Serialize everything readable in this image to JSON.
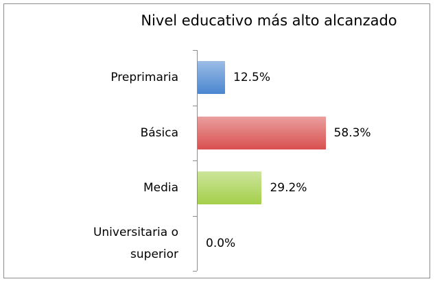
{
  "chart_data": {
    "type": "bar",
    "orientation": "horizontal",
    "title": "Nivel educativo más alto alcanzado",
    "categories": [
      "Preprimaria",
      "Básica",
      "Media",
      "Universitaria o superior"
    ],
    "values": [
      12.5,
      58.3,
      29.2,
      0.0
    ],
    "value_labels": [
      "12.5%",
      "58.3%",
      "29.2%",
      "0.0%"
    ],
    "colors": [
      "#4a86d0",
      "#d9504f",
      "#a4cf4a",
      "#888888"
    ]
  }
}
